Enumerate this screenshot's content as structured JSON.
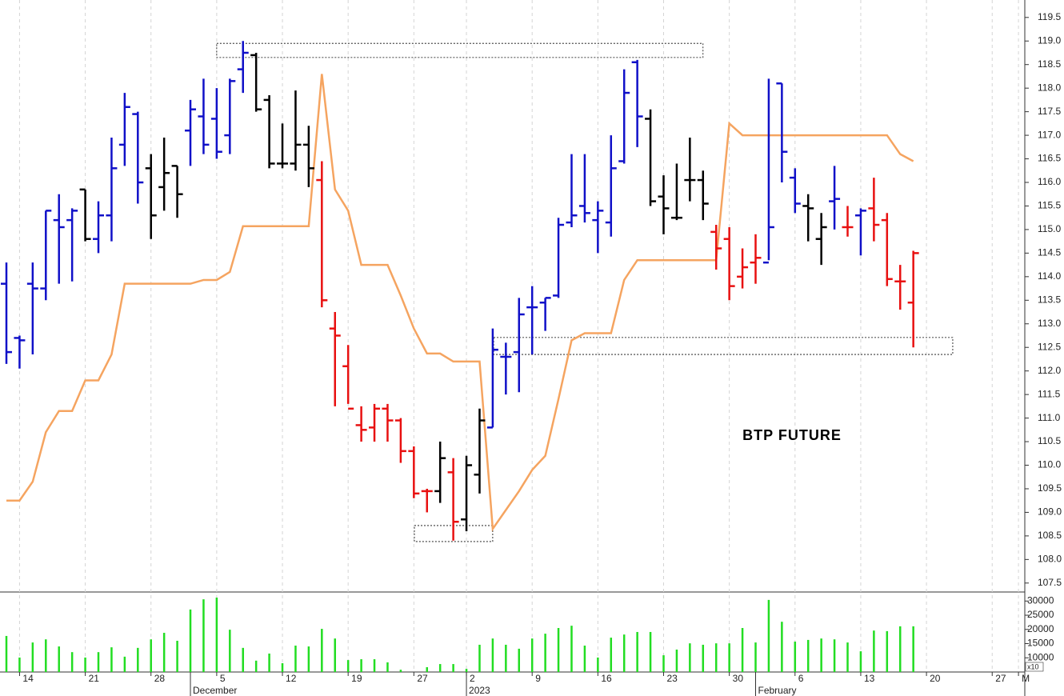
{
  "chart_data": {
    "type": "ohlc",
    "annotation": "BTP FUTURE",
    "x": [
      0,
      1,
      2,
      3,
      4,
      5,
      6,
      7,
      8,
      9,
      10,
      11,
      12,
      13,
      14,
      15,
      16,
      17,
      18,
      19,
      20,
      21,
      22,
      23,
      24,
      25,
      26,
      27,
      28,
      29,
      30,
      31,
      32,
      33,
      34,
      35,
      36,
      37,
      38,
      39,
      40,
      41,
      42,
      43,
      44,
      45,
      46,
      47,
      48,
      49,
      50,
      51,
      52,
      53,
      54,
      55,
      56,
      57,
      58,
      59,
      60,
      61,
      62,
      63,
      64,
      65,
      66,
      67,
      68,
      69
    ],
    "open": [
      113.85,
      112.7,
      113.85,
      113.75,
      115.2,
      115.2,
      115.85,
      114.8,
      115.3,
      116.8,
      117.45,
      116.3,
      115.9,
      116.35,
      117.1,
      117.4,
      117.35,
      117.0,
      118.4,
      118.7,
      117.75,
      116.4,
      116.4,
      116.8,
      116.05,
      112.9,
      112.1,
      110.85,
      110.8,
      111.2,
      110.95,
      110.3,
      109.45,
      109.45,
      109.85,
      108.85,
      109.8,
      110.8,
      112.3,
      112.4,
      113.35,
      113.45,
      113.6,
      115.15,
      115.5,
      115.2,
      115.15,
      116.45,
      118.55,
      117.35,
      115.7,
      115.25,
      116.05,
      116.05,
      114.95,
      114.8,
      114.0,
      114.3,
      114.3,
      118.1,
      116.1,
      115.5,
      114.8,
      115.6,
      115.05,
      115.3,
      115.45,
      115.2,
      113.9,
      113.45
    ],
    "high": [
      114.3,
      112.75,
      114.3,
      115.4,
      115.75,
      115.45,
      115.85,
      115.6,
      116.95,
      117.9,
      117.5,
      116.6,
      116.95,
      116.35,
      117.75,
      118.2,
      118.0,
      118.2,
      119.0,
      118.75,
      117.85,
      117.25,
      117.95,
      117.2,
      116.45,
      113.25,
      112.55,
      111.25,
      111.3,
      111.3,
      111.0,
      110.4,
      109.5,
      110.5,
      110.15,
      110.2,
      111.2,
      112.9,
      112.6,
      113.55,
      113.8,
      113.55,
      115.25,
      116.6,
      116.6,
      115.6,
      117.0,
      118.4,
      118.6,
      117.55,
      116.15,
      116.4,
      116.95,
      116.25,
      115.1,
      115.05,
      114.6,
      114.9,
      118.2,
      118.1,
      116.3,
      115.75,
      115.35,
      116.35,
      115.5,
      115.45,
      116.1,
      115.35,
      114.25,
      114.55
    ],
    "low": [
      112.15,
      112.05,
      112.35,
      113.5,
      113.85,
      113.9,
      114.75,
      114.5,
      114.75,
      116.35,
      115.55,
      114.8,
      115.4,
      115.25,
      116.35,
      116.6,
      116.5,
      116.6,
      117.9,
      117.5,
      116.3,
      116.3,
      116.25,
      115.9,
      113.35,
      111.25,
      111.3,
      110.5,
      110.5,
      110.5,
      110.05,
      109.3,
      109.0,
      109.2,
      108.4,
      108.6,
      109.4,
      110.8,
      111.5,
      111.55,
      112.35,
      112.85,
      113.55,
      115.05,
      115.15,
      114.5,
      114.85,
      116.4,
      116.75,
      115.5,
      114.9,
      115.2,
      115.6,
      115.2,
      114.15,
      113.5,
      113.75,
      113.85,
      114.35,
      116.0,
      115.35,
      114.75,
      114.25,
      115.0,
      114.85,
      114.45,
      114.75,
      113.8,
      113.3,
      112.5
    ],
    "close": [
      112.4,
      112.65,
      113.75,
      115.4,
      115.05,
      115.4,
      114.8,
      115.3,
      116.3,
      117.6,
      116.0,
      115.3,
      116.2,
      115.75,
      117.55,
      116.8,
      116.65,
      118.15,
      118.75,
      117.55,
      116.4,
      116.4,
      116.8,
      116.3,
      113.5,
      112.75,
      111.2,
      110.75,
      111.2,
      110.95,
      110.3,
      109.4,
      109.45,
      110.15,
      108.8,
      110.0,
      110.95,
      112.45,
      112.3,
      113.2,
      113.35,
      113.55,
      115.1,
      115.3,
      115.35,
      115.4,
      116.3,
      117.9,
      117.4,
      115.6,
      115.45,
      115.25,
      116.05,
      115.55,
      114.6,
      113.8,
      114.2,
      114.4,
      115.05,
      116.65,
      115.55,
      115.45,
      115.05,
      115.65,
      115.05,
      115.4,
      115.1,
      113.95,
      113.9,
      114.5
    ],
    "bar_colors": [
      "#1010c8",
      "#1010c8",
      "#1010c8",
      "#1010c8",
      "#1010c8",
      "#1010c8",
      "#000000",
      "#1010c8",
      "#1010c8",
      "#1010c8",
      "#1010c8",
      "#000000",
      "#000000",
      "#000000",
      "#1010c8",
      "#1010c8",
      "#1010c8",
      "#1010c8",
      "#1010c8",
      "#000000",
      "#000000",
      "#000000",
      "#000000",
      "#000000",
      "#e81010",
      "#e81010",
      "#e81010",
      "#e81010",
      "#e81010",
      "#e81010",
      "#e81010",
      "#e81010",
      "#e81010",
      "#000000",
      "#e81010",
      "#000000",
      "#000000",
      "#1010c8",
      "#1010c8",
      "#1010c8",
      "#1010c8",
      "#1010c8",
      "#1010c8",
      "#1010c8",
      "#1010c8",
      "#1010c8",
      "#1010c8",
      "#1010c8",
      "#1010c8",
      "#000000",
      "#000000",
      "#000000",
      "#000000",
      "#000000",
      "#e81010",
      "#e81010",
      "#e81010",
      "#e81010",
      "#1010c8",
      "#1010c8",
      "#1010c8",
      "#000000",
      "#000000",
      "#1010c8",
      "#e81010",
      "#1010c8",
      "#e81010",
      "#e81010",
      "#e81010",
      "#e81010"
    ],
    "line": {
      "color": "#f5a460",
      "values": [
        109.25,
        109.25,
        109.65,
        110.7,
        111.15,
        111.15,
        111.8,
        111.8,
        112.35,
        113.85,
        113.85,
        113.85,
        113.85,
        113.85,
        113.85,
        113.93,
        113.93,
        114.1,
        115.07,
        115.07,
        115.07,
        115.07,
        115.07,
        115.07,
        118.3,
        115.85,
        115.4,
        114.25,
        114.25,
        114.25,
        113.6,
        112.9,
        112.37,
        112.37,
        112.2,
        112.2,
        112.2,
        108.65,
        109.05,
        109.45,
        109.9,
        110.2,
        111.4,
        112.65,
        112.8,
        112.8,
        112.8,
        113.93,
        114.35,
        114.35,
        114.35,
        114.35,
        114.35,
        114.35,
        114.35,
        117.25,
        117.0,
        117.0,
        117.0,
        117.0,
        117.0,
        117.0,
        117.0,
        117.0,
        117.0,
        117.0,
        117.0,
        117.0,
        116.6,
        116.45
      ]
    },
    "boxes": [
      {
        "x": [
          16.0,
          53.0
        ],
        "y": [
          118.65,
          118.95
        ]
      },
      {
        "x": [
          37.07,
          72.0
        ],
        "y": [
          112.35,
          112.71
        ]
      },
      {
        "x": [
          31.04,
          37.0
        ],
        "y": [
          108.38,
          108.72
        ]
      }
    ],
    "xlim": [
      -0.487,
      77.42
    ],
    "ylim": [
      107.31,
      119.87
    ],
    "yticks": [
      119.5,
      {
        "value": 119.0,
        "label": "119.0"
      },
      118.5,
      {
        "value": 118.0,
        "label": "118.0"
      },
      117.5,
      {
        "value": 117.0,
        "label": "117.0"
      },
      116.5,
      {
        "value": 116.0,
        "label": "116.0"
      },
      115.5,
      {
        "value": 115.0,
        "label": "115.0"
      },
      114.5,
      {
        "value": 114.0,
        "label": "114.0"
      },
      113.5,
      {
        "value": 113.0,
        "label": "113.0"
      },
      112.5,
      {
        "value": 112.0,
        "label": "112.0"
      },
      111.5,
      {
        "value": 111.0,
        "label": "111.0"
      },
      110.5,
      {
        "value": 110.0,
        "label": "110.0"
      },
      109.5,
      {
        "value": 109.0,
        "label": "109.0"
      },
      108.5,
      {
        "value": 108.0,
        "label": "108.0"
      },
      107.5
    ],
    "xticks": [
      {
        "value": 1,
        "label": "14"
      },
      {
        "value": 6,
        "label": "21"
      },
      {
        "value": 11,
        "label": "28"
      },
      {
        "value": 16,
        "label": "5"
      },
      {
        "value": 21,
        "label": "12"
      },
      {
        "value": 26,
        "label": "19"
      },
      {
        "value": 31,
        "label": "27"
      },
      {
        "value": 35,
        "label": "2"
      },
      {
        "value": 40,
        "label": "9"
      },
      {
        "value": 45,
        "label": "16"
      },
      {
        "value": 50,
        "label": "23"
      },
      {
        "value": 55,
        "label": "30"
      },
      {
        "value": 60,
        "label": "6"
      },
      {
        "value": 65,
        "label": "13"
      },
      {
        "value": 70,
        "label": "20"
      },
      {
        "value": 75,
        "label": "27"
      },
      {
        "value": 77,
        "label": "M"
      }
    ],
    "month_ticks": [
      {
        "value": 14,
        "label": "December"
      },
      {
        "value": 35,
        "label": "2023"
      },
      {
        "value": 57,
        "label": "February"
      }
    ],
    "volume": {
      "color": "#22dd22",
      "unit_label": "x10",
      "values": [
        17700,
        10100,
        15400,
        16500,
        14000,
        12000,
        10100,
        12000,
        13700,
        10400,
        13500,
        16500,
        18800,
        16000,
        27000,
        30600,
        31200,
        19900,
        13500,
        9000,
        11500,
        8100,
        14300,
        14000,
        20200,
        16800,
        9200,
        9500,
        9500,
        8400,
        5800,
        5000,
        6700,
        7800,
        7800,
        6100,
        14600,
        16800,
        14600,
        13200,
        16800,
        18500,
        20500,
        21300,
        14300,
        10100,
        17100,
        18200,
        19100,
        19100,
        10900,
        12900,
        15100,
        14600,
        15100,
        15100,
        20500,
        15400,
        30400,
        22700,
        15700,
        16300,
        16800,
        16500,
        15400,
        12300,
        19600,
        19400,
        21100,
        21100
      ],
      "ylim": [
        5000,
        32900
      ],
      "yticks": [
        30000,
        25000,
        20000,
        15000,
        10000
      ]
    }
  }
}
